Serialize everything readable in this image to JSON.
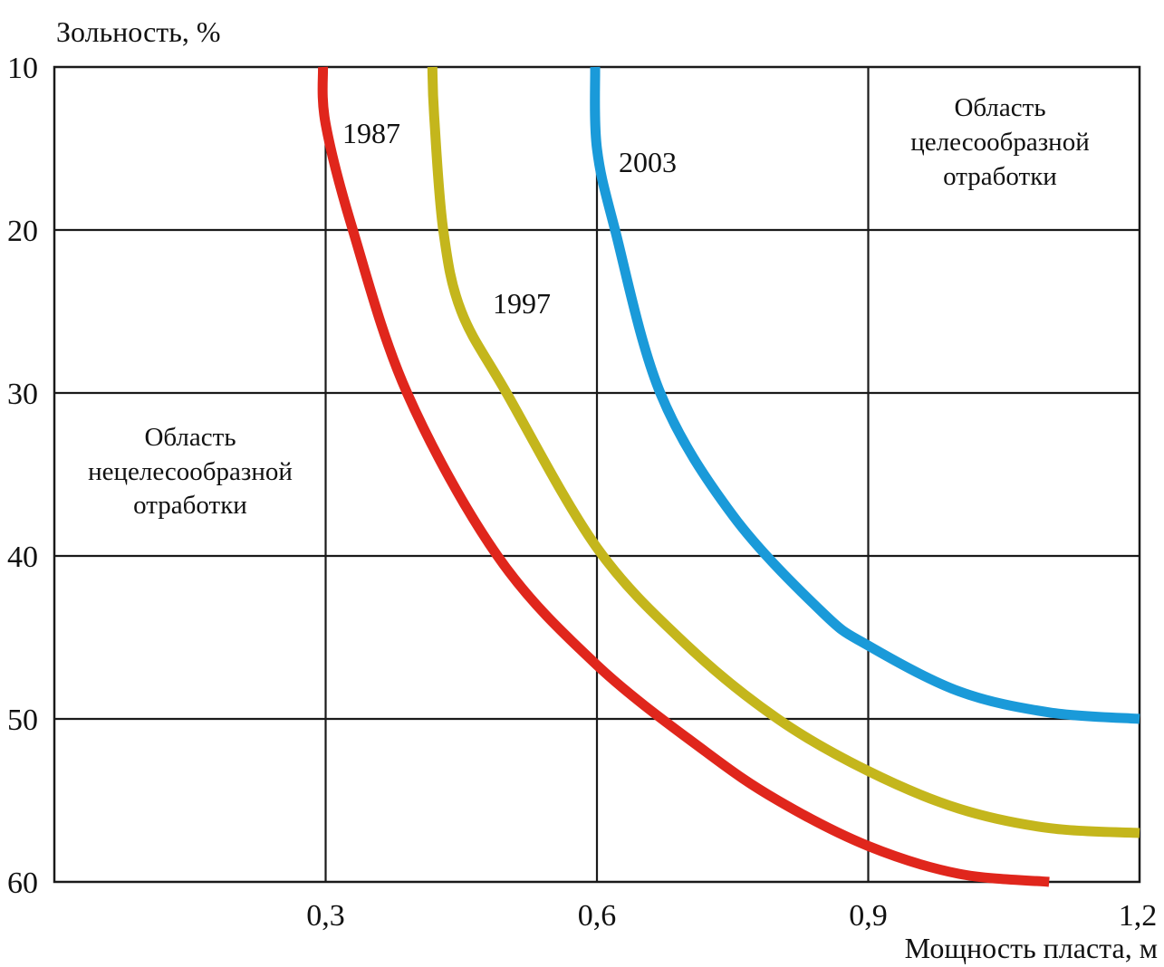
{
  "chart_data": {
    "type": "line",
    "xlabel": "Мощность пласта, м",
    "ylabel": "Зольность, %",
    "xlim": [
      0,
      1.2
    ],
    "ylim": [
      10,
      60
    ],
    "y_inverted": true,
    "grid": true,
    "x_ticks": [
      {
        "value": 0.3,
        "label": "0,3"
      },
      {
        "value": 0.6,
        "label": "0,6"
      },
      {
        "value": 0.9,
        "label": "0,9"
      },
      {
        "value": 1.2,
        "label": "1,2"
      }
    ],
    "y_ticks": [
      {
        "value": 10,
        "label": "10"
      },
      {
        "value": 20,
        "label": "20"
      },
      {
        "value": 30,
        "label": "30"
      },
      {
        "value": 40,
        "label": "40"
      },
      {
        "value": 50,
        "label": "50"
      },
      {
        "value": 60,
        "label": "60"
      }
    ],
    "series": [
      {
        "name": "1987",
        "color": "#e0261c",
        "x": [
          0.297,
          0.3,
          0.33,
          0.39,
          0.49,
          0.6,
          0.72,
          0.8,
          0.9,
          1.0,
          1.1
        ],
        "y": [
          10,
          13.5,
          20,
          30,
          40,
          46.7,
          52,
          55,
          57.8,
          59.5,
          60
        ]
      },
      {
        "name": "1997",
        "color": "#c4b61c",
        "x": [
          0.418,
          0.42,
          0.43,
          0.45,
          0.5,
          0.6,
          0.7,
          0.8,
          0.9,
          1.0,
          1.1,
          1.2
        ],
        "y": [
          10,
          13,
          20,
          25,
          30,
          39.5,
          45.5,
          50,
          53.2,
          55.5,
          56.7,
          57
        ]
      },
      {
        "name": "2003",
        "color": "#1a9ad9",
        "x": [
          0.598,
          0.6,
          0.62,
          0.67,
          0.75,
          0.85,
          0.9,
          1.0,
          1.1,
          1.2
        ],
        "y": [
          10,
          15,
          20,
          30,
          37.5,
          43.5,
          45.5,
          48.3,
          49.6,
          50
        ]
      }
    ],
    "annotations": [
      {
        "id": "area-unprofitable",
        "lines": [
          "Область",
          "нецелесообразной",
          "отработки"
        ]
      },
      {
        "id": "area-profitable",
        "lines": [
          "Область",
          "целесообразной",
          "отработки"
        ]
      }
    ]
  }
}
